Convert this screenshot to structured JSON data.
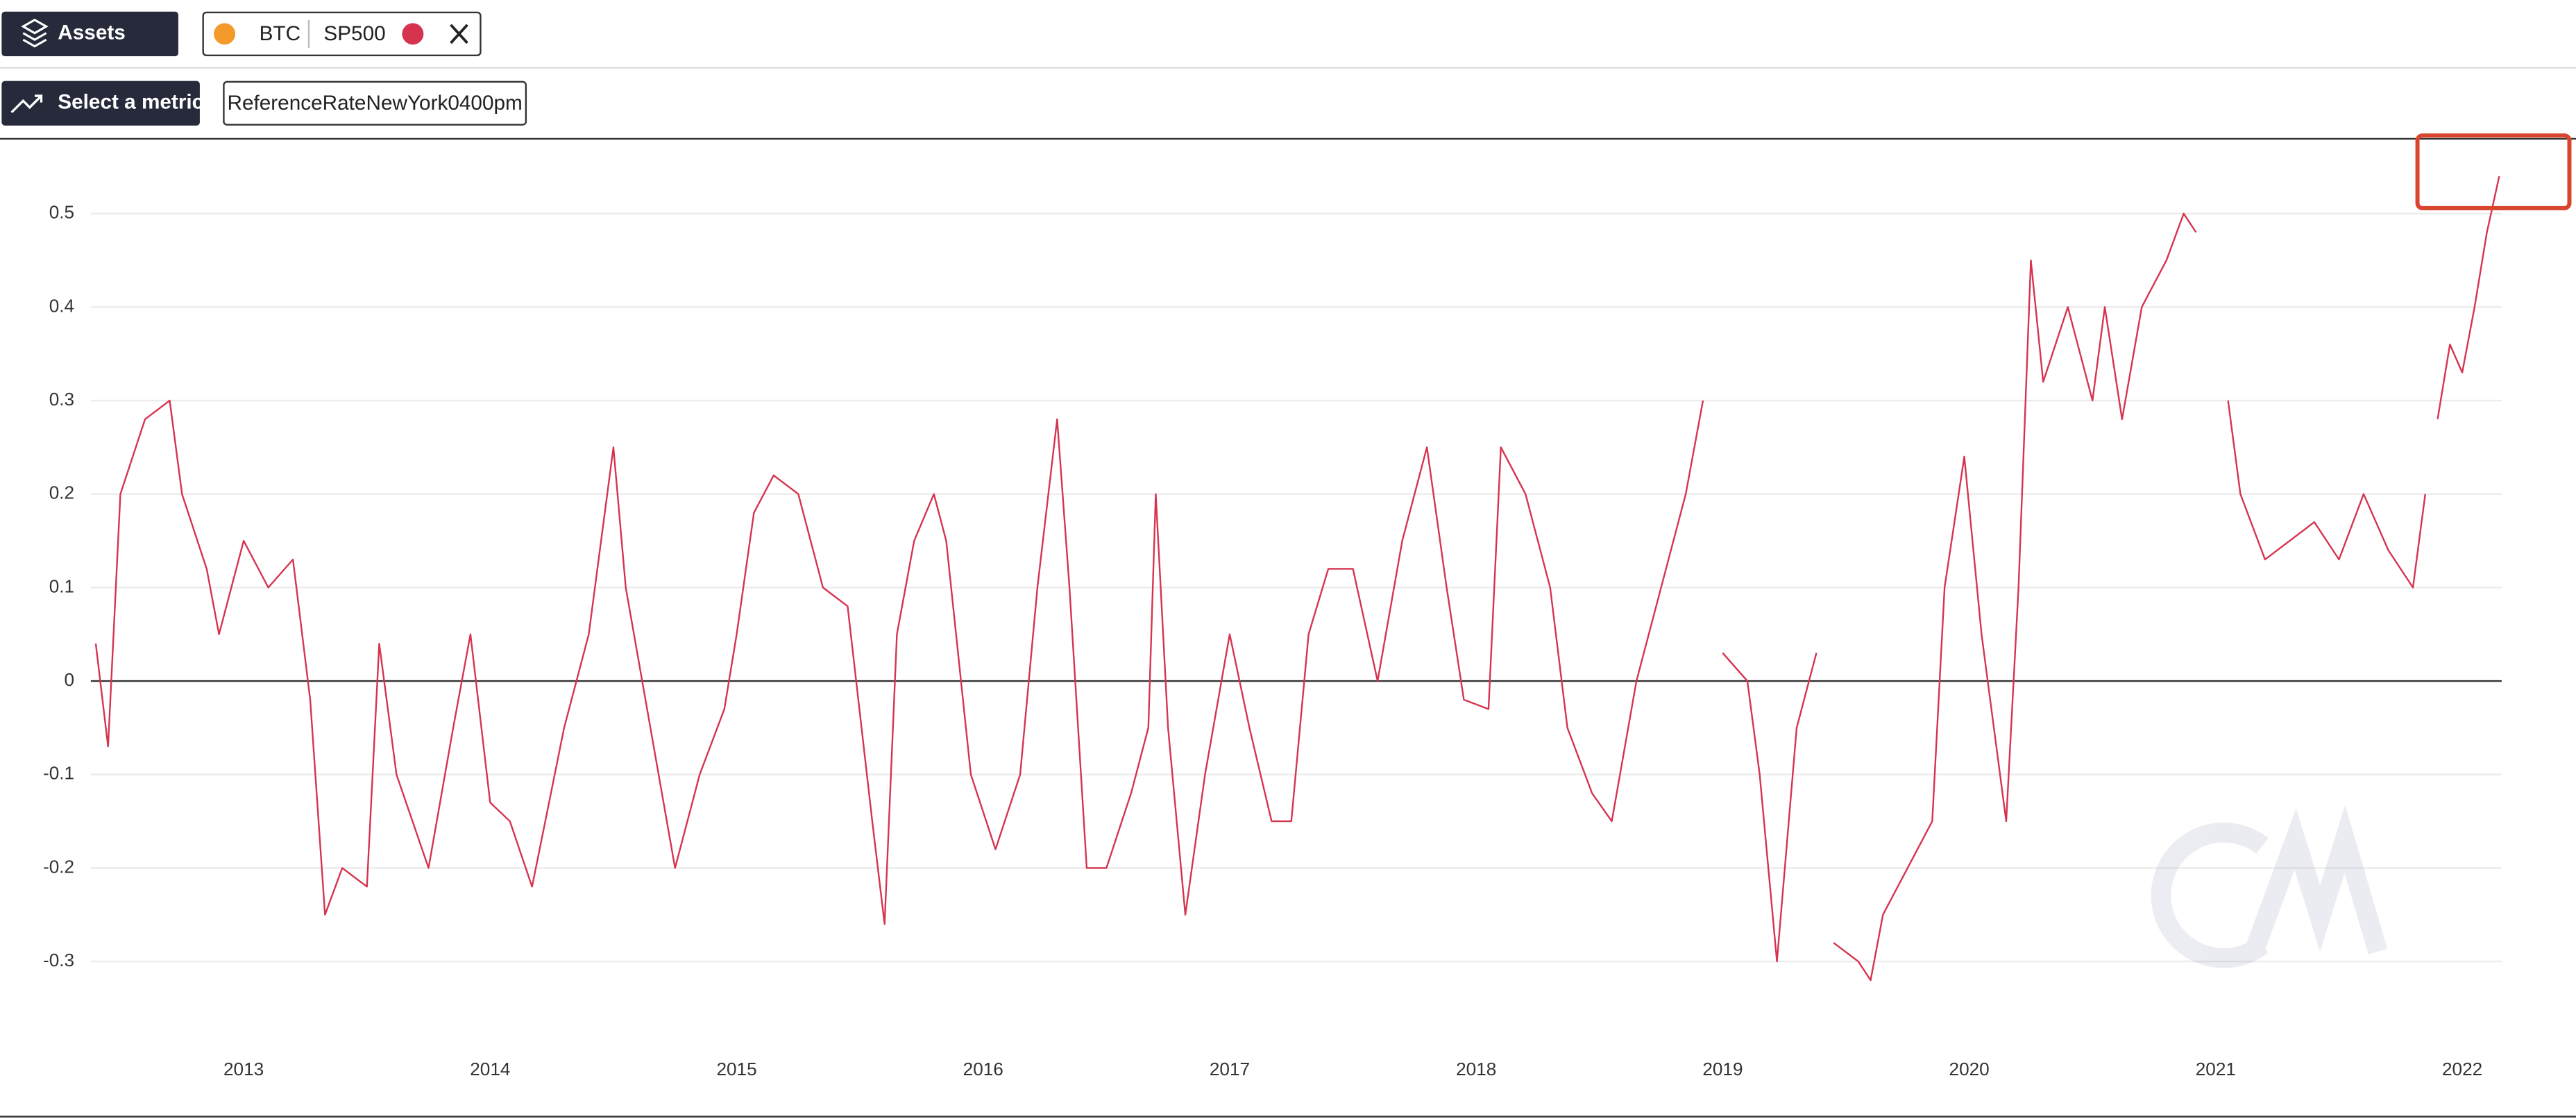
{
  "ui": {
    "assets_button": "Assets",
    "assets": [
      "BTC",
      "SP500"
    ],
    "metric_button": "Select a metric",
    "metric": "ReferenceRateNewYork0400pm"
  },
  "chart_data": {
    "type": "line",
    "color": "#d6334f",
    "grid": true,
    "x": [
      2012.4,
      2012.45,
      2012.5,
      2012.6,
      2012.7,
      2012.75,
      2012.85,
      2012.9,
      2013.0,
      2013.1,
      2013.2,
      2013.27,
      2013.33,
      2013.4,
      2013.5,
      2013.55,
      2013.62,
      2013.75,
      2013.85,
      2013.92,
      2014.0,
      2014.08,
      2014.17,
      2014.3,
      2014.4,
      2014.5,
      2014.55,
      2014.65,
      2014.75,
      2014.85,
      2014.95,
      2015.0,
      2015.07,
      2015.15,
      2015.25,
      2015.35,
      2015.45,
      2015.55,
      2015.6,
      2015.65,
      2015.72,
      2015.8,
      2015.85,
      2015.95,
      2016.05,
      2016.15,
      2016.22,
      2016.3,
      2016.35,
      2016.42,
      2016.5,
      2016.6,
      2016.67,
      2016.7,
      2016.75,
      2016.82,
      2016.9,
      2017.0,
      2017.08,
      2017.17,
      2017.25,
      2017.32,
      2017.4,
      2017.5,
      2017.6,
      2017.7,
      2017.8,
      2017.88,
      2017.95,
      2018.05,
      2018.1,
      2018.2,
      2018.3,
      2018.37,
      2018.47,
      2018.55,
      2018.65,
      2018.75,
      2018.85,
      2018.92,
      2018.97,
      2019.0,
      2019.1,
      2019.15,
      2019.22,
      2019.3,
      2019.38,
      2019.42,
      2019.45,
      2019.55,
      2019.6,
      2019.65,
      2019.75,
      2019.85,
      2019.9,
      2019.98,
      2020.05,
      2020.1,
      2020.15,
      2020.2,
      2020.25,
      2020.3,
      2020.4,
      2020.5,
      2020.55,
      2020.62,
      2020.7,
      2020.8,
      2020.87,
      2020.92,
      2020.97,
      2021.05,
      2021.1,
      2021.2,
      2021.3,
      2021.4,
      2021.5,
      2021.6,
      2021.7,
      2021.8,
      2021.85,
      2021.87,
      2021.9,
      2021.95,
      2022.0,
      2022.05,
      2022.1,
      2022.15
    ],
    "values": [
      0.04,
      -0.07,
      0.2,
      0.28,
      0.3,
      0.2,
      0.12,
      0.05,
      0.15,
      0.1,
      0.13,
      -0.02,
      -0.25,
      -0.2,
      -0.22,
      0.04,
      -0.1,
      -0.2,
      -0.05,
      0.05,
      -0.13,
      -0.15,
      -0.22,
      -0.05,
      0.05,
      0.25,
      0.1,
      -0.05,
      -0.2,
      -0.1,
      -0.03,
      0.05,
      0.18,
      0.22,
      0.2,
      0.1,
      0.08,
      -0.15,
      -0.26,
      0.05,
      0.15,
      0.2,
      0.15,
      -0.1,
      -0.18,
      -0.1,
      0.1,
      0.28,
      0.1,
      -0.2,
      -0.2,
      -0.12,
      -0.05,
      0.2,
      -0.05,
      -0.25,
      -0.1,
      0.05,
      -0.05,
      -0.15,
      -0.15,
      0.05,
      0.12,
      0.12,
      0.0,
      0.15,
      0.25,
      0.1,
      -0.02,
      -0.03,
      0.25,
      0.2,
      0.1,
      -0.05,
      -0.12,
      -0.15,
      0.0,
      0.1,
      0.2,
      0.3,
      null,
      0.03,
      0.0,
      -0.1,
      -0.3,
      -0.05,
      0.03,
      null,
      -0.28,
      -0.3,
      -0.32,
      -0.25,
      -0.2,
      -0.15,
      0.1,
      0.24,
      0.05,
      -0.05,
      -0.15,
      0.1,
      0.45,
      0.32,
      0.4,
      0.3,
      0.4,
      0.28,
      0.4,
      0.45,
      0.5,
      0.48,
      null,
      0.3,
      0.2,
      0.13,
      0.15,
      0.17,
      0.13,
      0.2,
      0.14,
      0.1,
      0.2,
      null,
      0.28,
      0.36,
      0.33,
      0.4,
      0.48,
      0.54
    ],
    "xlim": [
      2012.38,
      2022.16
    ],
    "xticks": [
      2013,
      2014,
      2015,
      2016,
      2017,
      2018,
      2019,
      2020,
      2021,
      2022
    ],
    "ylim": [
      -0.39,
      0.58
    ],
    "yticks": [
      -0.3,
      -0.2,
      -0.1,
      0,
      0.1,
      0.2,
      0.3,
      0.4,
      0.5
    ]
  }
}
